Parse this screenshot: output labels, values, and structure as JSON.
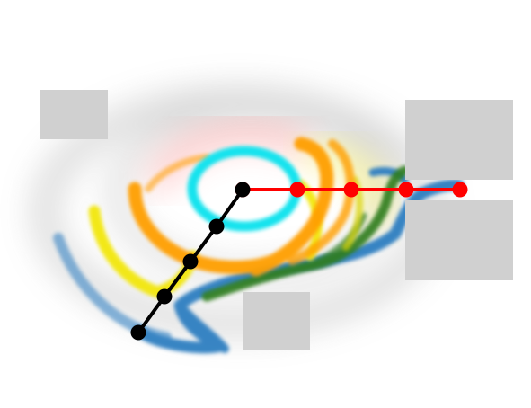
{
  "figure": {
    "style": "abstract trajectory heatmap with two polyline joint chains",
    "colors": {
      "background": "#ffffff",
      "placeholder_box": "#d0d0d0",
      "blue_band": "#2f7fc1",
      "orange_band": "#ff9f00",
      "yellow_band": "#f2e600",
      "green_band": "#2e7d1e",
      "cyan_ring": "#17e3ee",
      "red_haze": "#ff8080",
      "red_chain": "#ff0000",
      "black_chain": "#000000",
      "gray_haze": "#8a8a8a"
    },
    "chains": [
      {
        "name": "red-chain",
        "color": "red_chain",
        "joint_count": 5
      },
      {
        "name": "black-chain",
        "color": "black_chain",
        "joint_count": 5
      }
    ],
    "placeholders": [
      "top-left",
      "right-upper",
      "right-lower",
      "bottom"
    ]
  }
}
